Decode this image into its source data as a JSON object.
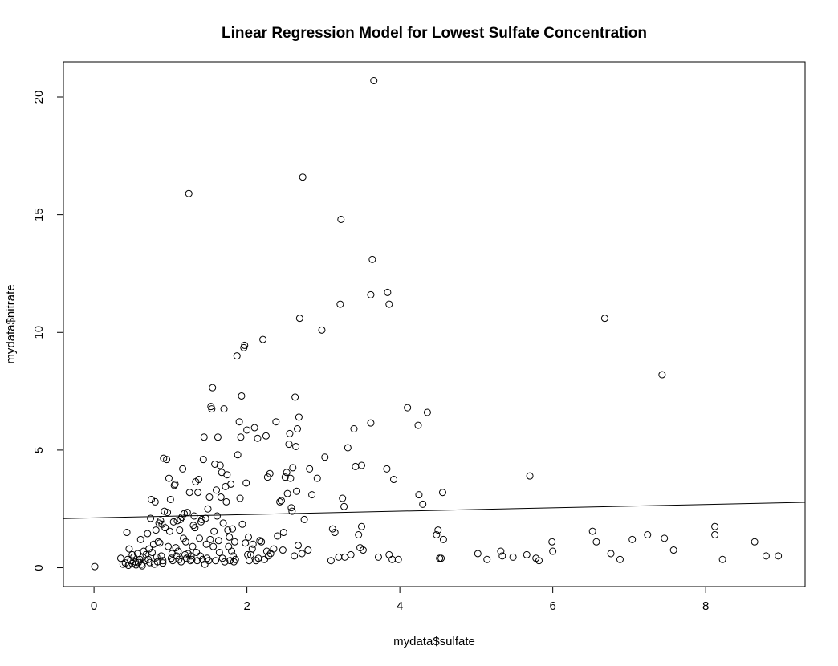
{
  "chart_data": {
    "type": "scatter",
    "title": "Linear Regression Model for Lowest Sulfate Concentration",
    "xlabel": "mydata$sulfate",
    "ylabel": "mydata$nitrate",
    "xlim": [
      -0.4,
      9.3
    ],
    "ylim": [
      -0.8,
      21.5
    ],
    "x_ticks": [
      0,
      2,
      4,
      6,
      8
    ],
    "y_ticks": [
      0,
      5,
      10,
      15,
      20
    ],
    "grid": false,
    "legend": "none",
    "regression_line": {
      "intercept": 2.12,
      "slope": 0.071
    },
    "points": [
      [
        0.01,
        0.05
      ],
      [
        0.35,
        0.4
      ],
      [
        0.38,
        0.15
      ],
      [
        0.41,
        0.2
      ],
      [
        0.43,
        1.5
      ],
      [
        0.44,
        0.35
      ],
      [
        0.45,
        0.1
      ],
      [
        0.46,
        0.8
      ],
      [
        0.48,
        0.3
      ],
      [
        0.5,
        0.55
      ],
      [
        0.5,
        0.18
      ],
      [
        0.52,
        0.45
      ],
      [
        0.54,
        0.25
      ],
      [
        0.55,
        0.12
      ],
      [
        0.57,
        0.6
      ],
      [
        0.58,
        0.22
      ],
      [
        0.6,
        0.35
      ],
      [
        0.61,
        1.2
      ],
      [
        0.62,
        0.15
      ],
      [
        0.63,
        0.08
      ],
      [
        0.64,
        0.45
      ],
      [
        0.65,
        0.7
      ],
      [
        0.67,
        0.3
      ],
      [
        0.68,
        0.55
      ],
      [
        0.7,
        1.45
      ],
      [
        0.71,
        0.35
      ],
      [
        0.72,
        0.8
      ],
      [
        0.73,
        0.22
      ],
      [
        0.74,
        2.1
      ],
      [
        0.75,
        2.9
      ],
      [
        0.76,
        0.65
      ],
      [
        0.78,
        1.0
      ],
      [
        0.79,
        0.15
      ],
      [
        0.8,
        2.8
      ],
      [
        0.81,
        1.6
      ],
      [
        0.82,
        0.45
      ],
      [
        0.83,
        0.25
      ],
      [
        0.84,
        1.1
      ],
      [
        0.85,
        1.9
      ],
      [
        0.86,
        1.05
      ],
      [
        0.87,
        2.0
      ],
      [
        0.88,
        0.5
      ],
      [
        0.89,
        1.85
      ],
      [
        0.9,
        0.3
      ],
      [
        0.9,
        0.2
      ],
      [
        0.91,
        4.65
      ],
      [
        0.92,
        2.4
      ],
      [
        0.93,
        1.7
      ],
      [
        0.95,
        4.6
      ],
      [
        0.96,
        2.35
      ],
      [
        0.97,
        0.9
      ],
      [
        0.98,
        3.8
      ],
      [
        0.99,
        1.55
      ],
      [
        1.0,
        2.9
      ],
      [
        1.01,
        0.4
      ],
      [
        1.02,
        0.6
      ],
      [
        1.03,
        0.3
      ],
      [
        1.04,
        1.95
      ],
      [
        1.05,
        3.5
      ],
      [
        1.06,
        3.55
      ],
      [
        1.07,
        0.85
      ],
      [
        1.08,
        0.5
      ],
      [
        1.09,
        2.0
      ],
      [
        1.1,
        0.7
      ],
      [
        1.11,
        0.35
      ],
      [
        1.12,
        1.6
      ],
      [
        1.13,
        2.05
      ],
      [
        1.14,
        0.25
      ],
      [
        1.15,
        2.15
      ],
      [
        1.16,
        4.2
      ],
      [
        1.17,
        1.25
      ],
      [
        1.18,
        2.3
      ],
      [
        1.19,
        0.55
      ],
      [
        1.2,
        1.1
      ],
      [
        1.21,
        0.4
      ],
      [
        1.22,
        2.35
      ],
      [
        1.23,
        0.6
      ],
      [
        1.24,
        15.9
      ],
      [
        1.25,
        3.2
      ],
      [
        1.26,
        0.3
      ],
      [
        1.27,
        0.5
      ],
      [
        1.28,
        0.35
      ],
      [
        1.29,
        0.9
      ],
      [
        1.3,
        1.8
      ],
      [
        1.31,
        2.2
      ],
      [
        1.32,
        1.7
      ],
      [
        1.33,
        3.65
      ],
      [
        1.34,
        0.65
      ],
      [
        1.35,
        0.3
      ],
      [
        1.36,
        3.2
      ],
      [
        1.37,
        3.75
      ],
      [
        1.38,
        1.25
      ],
      [
        1.39,
        0.5
      ],
      [
        1.4,
        1.95
      ],
      [
        1.41,
        2.05
      ],
      [
        1.42,
        0.35
      ],
      [
        1.43,
        4.6
      ],
      [
        1.44,
        5.55
      ],
      [
        1.45,
        0.15
      ],
      [
        1.46,
        2.1
      ],
      [
        1.47,
        1.0
      ],
      [
        1.48,
        0.4
      ],
      [
        1.49,
        2.5
      ],
      [
        1.5,
        0.3
      ],
      [
        1.51,
        3.0
      ],
      [
        1.52,
        1.2
      ],
      [
        1.53,
        6.85
      ],
      [
        1.54,
        6.75
      ],
      [
        1.55,
        7.65
      ],
      [
        1.56,
        0.9
      ],
      [
        1.57,
        1.55
      ],
      [
        1.58,
        4.4
      ],
      [
        1.59,
        0.3
      ],
      [
        1.6,
        3.3
      ],
      [
        1.61,
        2.2
      ],
      [
        1.62,
        5.55
      ],
      [
        1.63,
        1.15
      ],
      [
        1.64,
        0.65
      ],
      [
        1.65,
        4.35
      ],
      [
        1.66,
        3.0
      ],
      [
        1.67,
        4.05
      ],
      [
        1.68,
        0.4
      ],
      [
        1.69,
        1.9
      ],
      [
        1.7,
        6.75
      ],
      [
        1.71,
        0.25
      ],
      [
        1.72,
        3.45
      ],
      [
        1.73,
        2.8
      ],
      [
        1.74,
        3.95
      ],
      [
        1.75,
        1.6
      ],
      [
        1.76,
        0.9
      ],
      [
        1.77,
        1.3
      ],
      [
        1.78,
        0.3
      ],
      [
        1.79,
        3.55
      ],
      [
        1.8,
        0.7
      ],
      [
        1.81,
        1.65
      ],
      [
        1.82,
        0.5
      ],
      [
        1.83,
        0.25
      ],
      [
        1.84,
        1.1
      ],
      [
        1.85,
        0.35
      ],
      [
        1.87,
        9.0
      ],
      [
        1.88,
        4.8
      ],
      [
        1.9,
        6.2
      ],
      [
        1.91,
        2.95
      ],
      [
        1.92,
        5.55
      ],
      [
        1.93,
        7.3
      ],
      [
        1.94,
        1.85
      ],
      [
        1.96,
        9.35
      ],
      [
        1.97,
        9.45
      ],
      [
        1.98,
        1.05
      ],
      [
        1.99,
        3.6
      ],
      [
        2.0,
        5.85
      ],
      [
        2.01,
        0.55
      ],
      [
        2.02,
        1.3
      ],
      [
        2.03,
        0.3
      ],
      [
        2.05,
        0.55
      ],
      [
        2.07,
        0.8
      ],
      [
        2.08,
        1.0
      ],
      [
        2.1,
        5.95
      ],
      [
        2.12,
        0.3
      ],
      [
        2.14,
        5.5
      ],
      [
        2.15,
        0.4
      ],
      [
        2.17,
        1.15
      ],
      [
        2.19,
        1.1
      ],
      [
        2.21,
        9.7
      ],
      [
        2.23,
        0.35
      ],
      [
        2.25,
        5.6
      ],
      [
        2.26,
        0.7
      ],
      [
        2.27,
        3.85
      ],
      [
        2.28,
        0.5
      ],
      [
        2.3,
        4.0
      ],
      [
        2.31,
        0.6
      ],
      [
        2.35,
        0.8
      ],
      [
        2.38,
        6.2
      ],
      [
        2.4,
        1.35
      ],
      [
        2.43,
        2.8
      ],
      [
        2.45,
        2.85
      ],
      [
        2.47,
        0.75
      ],
      [
        2.48,
        1.5
      ],
      [
        2.5,
        3.85
      ],
      [
        2.52,
        4.05
      ],
      [
        2.53,
        3.15
      ],
      [
        2.55,
        5.25
      ],
      [
        2.56,
        5.7
      ],
      [
        2.57,
        3.8
      ],
      [
        2.58,
        2.55
      ],
      [
        2.59,
        2.4
      ],
      [
        2.6,
        4.25
      ],
      [
        2.62,
        0.5
      ],
      [
        2.63,
        7.25
      ],
      [
        2.64,
        5.15
      ],
      [
        2.65,
        3.25
      ],
      [
        2.66,
        5.9
      ],
      [
        2.67,
        0.95
      ],
      [
        2.68,
        6.4
      ],
      [
        2.69,
        10.6
      ],
      [
        2.72,
        0.6
      ],
      [
        2.73,
        16.6
      ],
      [
        2.75,
        2.05
      ],
      [
        2.8,
        0.75
      ],
      [
        2.82,
        4.2
      ],
      [
        2.85,
        3.1
      ],
      [
        2.92,
        3.8
      ],
      [
        2.98,
        10.1
      ],
      [
        3.02,
        4.7
      ],
      [
        3.1,
        0.3
      ],
      [
        3.12,
        1.65
      ],
      [
        3.15,
        1.5
      ],
      [
        3.2,
        0.45
      ],
      [
        3.22,
        11.2
      ],
      [
        3.23,
        14.8
      ],
      [
        3.25,
        2.95
      ],
      [
        3.27,
        2.6
      ],
      [
        3.28,
        0.45
      ],
      [
        3.32,
        5.1
      ],
      [
        3.36,
        0.55
      ],
      [
        3.4,
        5.9
      ],
      [
        3.42,
        4.3
      ],
      [
        3.46,
        1.4
      ],
      [
        3.48,
        0.85
      ],
      [
        3.5,
        4.35
      ],
      [
        3.52,
        0.75
      ],
      [
        3.5,
        1.75
      ],
      [
        3.62,
        11.6
      ],
      [
        3.62,
        6.15
      ],
      [
        3.64,
        13.1
      ],
      [
        3.66,
        20.7
      ],
      [
        3.72,
        0.45
      ],
      [
        3.83,
        4.2
      ],
      [
        3.84,
        11.7
      ],
      [
        3.86,
        11.2
      ],
      [
        3.86,
        0.55
      ],
      [
        3.9,
        0.35
      ],
      [
        3.92,
        3.75
      ],
      [
        3.98,
        0.35
      ],
      [
        4.1,
        6.8
      ],
      [
        4.24,
        6.05
      ],
      [
        4.25,
        3.1
      ],
      [
        4.3,
        2.7
      ],
      [
        4.36,
        6.6
      ],
      [
        4.48,
        1.4
      ],
      [
        4.5,
        1.6
      ],
      [
        4.52,
        0.4
      ],
      [
        4.54,
        0.4
      ],
      [
        4.56,
        3.2
      ],
      [
        4.57,
        1.2
      ],
      [
        5.02,
        0.6
      ],
      [
        5.14,
        0.35
      ],
      [
        5.32,
        0.7
      ],
      [
        5.34,
        0.5
      ],
      [
        5.48,
        0.45
      ],
      [
        5.66,
        0.55
      ],
      [
        5.7,
        3.9
      ],
      [
        5.78,
        0.4
      ],
      [
        5.82,
        0.3
      ],
      [
        5.99,
        1.1
      ],
      [
        6.0,
        0.7
      ],
      [
        6.52,
        1.55
      ],
      [
        6.57,
        1.1
      ],
      [
        6.68,
        10.6
      ],
      [
        6.76,
        0.6
      ],
      [
        6.88,
        0.35
      ],
      [
        7.04,
        1.2
      ],
      [
        7.24,
        1.4
      ],
      [
        7.43,
        8.2
      ],
      [
        7.46,
        1.25
      ],
      [
        7.58,
        0.75
      ],
      [
        8.12,
        1.75
      ],
      [
        8.12,
        1.4
      ],
      [
        8.22,
        0.35
      ],
      [
        8.64,
        1.1
      ],
      [
        8.79,
        0.5
      ],
      [
        8.95,
        0.5
      ]
    ]
  }
}
